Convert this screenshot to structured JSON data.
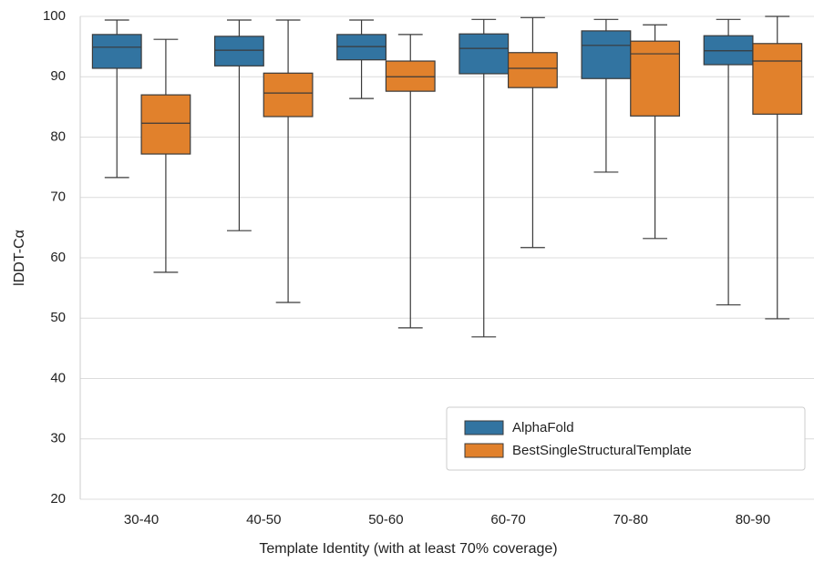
{
  "chart_data": {
    "type": "box",
    "x_label": "Template Identity (with at least 70% coverage)",
    "y_label": "lDDT-Cα",
    "categories": [
      "30-40",
      "40-50",
      "50-60",
      "60-70",
      "70-80",
      "80-90"
    ],
    "ylim": [
      20,
      100
    ],
    "yticks": [
      20,
      30,
      40,
      50,
      60,
      70,
      80,
      90,
      100
    ],
    "grid": true,
    "legend": "lower right",
    "series": [
      {
        "name": "AlphaFold",
        "color": "#3274a1",
        "min": [
          73.3,
          64.5,
          86.4,
          46.9,
          74.2,
          52.2
        ],
        "q1": [
          91.4,
          91.8,
          92.8,
          90.5,
          89.7,
          92.0
        ],
        "median": [
          94.9,
          94.4,
          95.0,
          94.7,
          95.2,
          94.3
        ],
        "q3": [
          97.0,
          96.7,
          97.0,
          97.1,
          97.6,
          96.8
        ],
        "max": [
          99.4,
          99.4,
          99.4,
          99.5,
          99.5,
          99.5
        ]
      },
      {
        "name": "BestSingleStructuralTemplate",
        "color": "#e1812c",
        "min": [
          57.6,
          52.6,
          48.4,
          61.7,
          63.2,
          49.9
        ],
        "q1": [
          77.2,
          83.4,
          87.6,
          88.2,
          83.5,
          83.8
        ],
        "median": [
          82.3,
          87.3,
          90.0,
          91.4,
          93.8,
          92.6
        ],
        "q3": [
          87.0,
          90.6,
          92.6,
          94.0,
          95.9,
          95.5
        ],
        "max": [
          96.2,
          99.4,
          97.0,
          99.8,
          98.6,
          100.0
        ]
      }
    ]
  }
}
